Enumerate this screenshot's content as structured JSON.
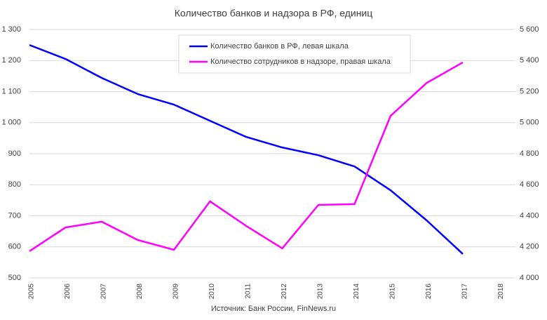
{
  "chart_data": {
    "type": "line",
    "title": "Количество банков и надзора в РФ, единиц",
    "source": "Источник: Банк России, FinNews.ru",
    "categories": [
      "2005",
      "2006",
      "2007",
      "2008",
      "2009",
      "2010",
      "2011",
      "2012",
      "2013",
      "2014",
      "2015",
      "2016",
      "2017",
      "2018"
    ],
    "series": [
      {
        "name": "Количество банков в РФ, левая шкала",
        "color": "#0000ff",
        "values": [
          1250,
          1205,
          1144,
          1092,
          1058,
          1006,
          954,
          920,
          895,
          859,
          782,
          685,
          577,
          null
        ]
      },
      {
        "name": "Количество сотрудников в надзоре, правая шкала",
        "color": "#ff00ff",
        "axis": "y2",
        "values": [
          4172,
          4325,
          4362,
          4244,
          4181,
          4493,
          4335,
          4190,
          4470,
          4475,
          5044,
          5256,
          5388,
          null
        ]
      }
    ],
    "ylim": [
      500,
      1300
    ],
    "yticks": [
      500,
      600,
      700,
      800,
      900,
      {
        "value": 1000,
        "label": "1 000"
      },
      {
        "value": 1100,
        "label": "1 100"
      },
      {
        "value": 1200,
        "label": "1 200"
      },
      {
        "value": 1300,
        "label": "1 300"
      }
    ],
    "y2lim": [
      4000,
      5600
    ],
    "y2ticks": [
      {
        "value": 4000,
        "label": "4 000"
      },
      {
        "value": 4200,
        "label": "4 200"
      },
      {
        "value": 4400,
        "label": "4 400"
      },
      {
        "value": 4600,
        "label": "4 600"
      },
      {
        "value": 4800,
        "label": "4 800"
      },
      {
        "value": 5000,
        "label": "5 000"
      },
      {
        "value": 5200,
        "label": "5 200"
      },
      {
        "value": 5400,
        "label": "5 400"
      },
      {
        "value": 5600,
        "label": "5 600"
      }
    ],
    "grid": true,
    "legend": "top"
  }
}
